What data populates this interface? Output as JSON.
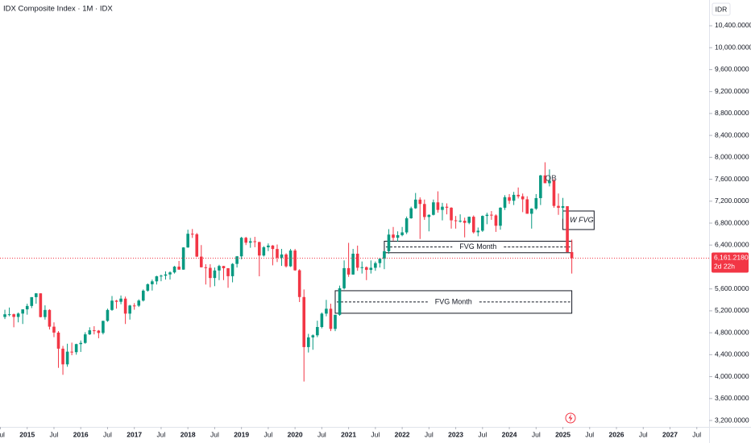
{
  "chart_data": {
    "type": "candlestick",
    "title": "IDX Composite Index · 1M · IDX",
    "currency": "IDR",
    "up_color": "#089981",
    "down_color": "#f23645",
    "x": [
      "2014-08",
      "2014-09",
      "2014-10",
      "2014-11",
      "2014-12",
      "2015-01",
      "2015-02",
      "2015-03",
      "2015-04",
      "2015-05",
      "2015-06",
      "2015-07",
      "2015-08",
      "2015-09",
      "2015-10",
      "2015-11",
      "2015-12",
      "2016-01",
      "2016-02",
      "2016-03",
      "2016-04",
      "2016-05",
      "2016-06",
      "2016-07",
      "2016-08",
      "2016-09",
      "2016-10",
      "2016-11",
      "2016-12",
      "2017-01",
      "2017-02",
      "2017-03",
      "2017-04",
      "2017-05",
      "2017-06",
      "2017-07",
      "2017-08",
      "2017-09",
      "2017-10",
      "2017-11",
      "2017-12",
      "2018-01",
      "2018-02",
      "2018-03",
      "2018-04",
      "2018-05",
      "2018-06",
      "2018-07",
      "2018-08",
      "2018-09",
      "2018-10",
      "2018-11",
      "2018-12",
      "2019-01",
      "2019-02",
      "2019-03",
      "2019-04",
      "2019-05",
      "2019-06",
      "2019-07",
      "2019-08",
      "2019-09",
      "2019-10",
      "2019-11",
      "2019-12",
      "2020-01",
      "2020-02",
      "2020-03",
      "2020-04",
      "2020-05",
      "2020-06",
      "2020-07",
      "2020-08",
      "2020-09",
      "2020-10",
      "2020-11",
      "2020-12",
      "2021-01",
      "2021-02",
      "2021-03",
      "2021-04",
      "2021-05",
      "2021-06",
      "2021-07",
      "2021-08",
      "2021-09",
      "2021-10",
      "2021-11",
      "2021-12",
      "2022-01",
      "2022-02",
      "2022-03",
      "2022-04",
      "2022-05",
      "2022-06",
      "2022-07",
      "2022-08",
      "2022-09",
      "2022-10",
      "2022-11",
      "2022-12",
      "2023-01",
      "2023-02",
      "2023-03",
      "2023-04",
      "2023-05",
      "2023-06",
      "2023-07",
      "2023-08",
      "2023-09",
      "2023-10",
      "2023-11",
      "2023-12",
      "2024-01",
      "2024-02",
      "2024-03",
      "2024-04",
      "2024-05",
      "2024-06",
      "2024-07",
      "2024-08",
      "2024-09",
      "2024-10",
      "2024-11",
      "2024-12",
      "2025-01",
      "2025-02",
      "2025-03"
    ],
    "open": [
      5088,
      5137,
      5138,
      5089,
      5150,
      5227,
      5289,
      5450,
      5519,
      5086,
      5216,
      4911,
      4803,
      4510,
      4224,
      4455,
      4446,
      4593,
      4615,
      4771,
      4845,
      4839,
      4797,
      5017,
      5216,
      5386,
      5365,
      5423,
      5149,
      5297,
      5294,
      5387,
      5568,
      5685,
      5738,
      5830,
      5841,
      5864,
      5901,
      6006,
      5952,
      6356,
      6606,
      6597,
      6189,
      5995,
      5984,
      5799,
      5936,
      6018,
      5977,
      5832,
      6056,
      6194,
      6533,
      6443,
      6469,
      6455,
      6209,
      6359,
      6391,
      6328,
      6169,
      6228,
      6012,
      6300,
      5940,
      5452,
      4539,
      4716,
      4754,
      4905,
      5149,
      5238,
      4870,
      5128,
      5612,
      5979,
      5862,
      6242,
      5986,
      5996,
      5947,
      5985,
      6070,
      6150,
      6287,
      6591,
      6533,
      6581,
      6631,
      6888,
      7071,
      7229,
      7149,
      6912,
      6951,
      7179,
      7041,
      7099,
      7081,
      6851,
      6839,
      6843,
      6805,
      6916,
      6633,
      6662,
      6931,
      6953,
      6940,
      6752,
      7081,
      7273,
      7208,
      7316,
      7289,
      7234,
      6971,
      7064,
      7256,
      7670,
      7528,
      7575,
      7114,
      7080,
      7109,
      6271
    ],
    "high": [
      5220,
      5260,
      5150,
      5170,
      5228,
      5330,
      5450,
      5524,
      5520,
      5300,
      5230,
      4990,
      4830,
      4560,
      4600,
      4620,
      4600,
      4660,
      4810,
      4900,
      4920,
      4850,
      5020,
      5240,
      5470,
      5400,
      5480,
      5460,
      5310,
      5340,
      5410,
      5590,
      5700,
      5770,
      5840,
      5860,
      5920,
      5920,
      6020,
      6110,
      6360,
      6680,
      6693,
      6620,
      6400,
      6050,
      6050,
      5990,
      6040,
      6020,
      5980,
      6070,
      6200,
      6550,
      6550,
      6530,
      6550,
      6460,
      6380,
      6430,
      6400,
      6410,
      6330,
      6250,
      6330,
      6330,
      5960,
      5590,
      4780,
      4770,
      5020,
      5170,
      5400,
      5330,
      5130,
      5660,
      6120,
      6440,
      6330,
      6390,
      6100,
      6010,
      6120,
      6100,
      6160,
      6290,
      6690,
      6730,
      6650,
      6730,
      6920,
      7100,
      7350,
      7270,
      7230,
      6960,
      7230,
      7380,
      7170,
      7160,
      7090,
      6930,
      6960,
      6900,
      6920,
      6940,
      6720,
      6940,
      6990,
      7020,
      6960,
      7090,
      7310,
      7330,
      7370,
      7450,
      7340,
      7290,
      7070,
      7330,
      7680,
      7910,
      7780,
      7610,
      7340,
      7260,
      7110,
      6500
    ],
    "low": [
      5050,
      5100,
      4900,
      4990,
      4960,
      5130,
      5250,
      5330,
      5080,
      5040,
      4860,
      4720,
      4160,
      4033,
      4180,
      4390,
      4400,
      4450,
      4600,
      4760,
      4770,
      4700,
      4770,
      5000,
      5200,
      5240,
      5320,
      4960,
      5040,
      5220,
      5270,
      5370,
      5550,
      5570,
      5680,
      5740,
      5770,
      5770,
      5880,
      5950,
      5950,
      6350,
      6530,
      6180,
      5990,
      5680,
      5630,
      5650,
      5760,
      5760,
      5620,
      5720,
      5990,
      6140,
      6400,
      6350,
      6360,
      5830,
      6190,
      6290,
      6030,
      6090,
      6020,
      5990,
      6000,
      5930,
      5360,
      3911,
      4440,
      4490,
      4720,
      4880,
      5100,
      4830,
      4830,
      5110,
      5590,
      5820,
      5860,
      5930,
      5880,
      5760,
      5880,
      5930,
      5990,
      5960,
      6240,
      6480,
      6460,
      6560,
      6600,
      6880,
      7060,
      6510,
      6860,
      6650,
      6940,
      6990,
      6850,
      6960,
      6700,
      6700,
      6810,
      6540,
      6780,
      6610,
      6560,
      6640,
      6780,
      6860,
      6640,
      6680,
      7040,
      7150,
      7130,
      7250,
      7000,
      6970,
      6700,
      7040,
      7130,
      7540,
      7470,
      7080,
      6950,
      6880,
      6270,
      5880
    ],
    "close": [
      5137,
      5138,
      5089,
      5150,
      5227,
      5289,
      5450,
      5519,
      5086,
      5216,
      4911,
      4803,
      4510,
      4224,
      4455,
      4446,
      4593,
      4615,
      4771,
      4845,
      4839,
      4797,
      5017,
      5216,
      5386,
      5365,
      5423,
      5149,
      5297,
      5294,
      5387,
      5568,
      5685,
      5738,
      5830,
      5841,
      5864,
      5901,
      6006,
      5952,
      6356,
      6606,
      6597,
      6189,
      5995,
      5984,
      5799,
      5936,
      6018,
      5977,
      5832,
      6056,
      6194,
      6533,
      6443,
      6469,
      6455,
      6209,
      6359,
      6391,
      6328,
      6169,
      6228,
      6012,
      6300,
      5940,
      5452,
      4539,
      4716,
      4754,
      4905,
      5149,
      5238,
      4870,
      5128,
      5612,
      5979,
      5862,
      6242,
      5986,
      5996,
      5947,
      5985,
      6070,
      6150,
      6287,
      6591,
      6533,
      6581,
      6631,
      6888,
      7071,
      7229,
      7149,
      6912,
      6951,
      7179,
      7041,
      7099,
      7081,
      6851,
      6839,
      6843,
      6805,
      6916,
      6633,
      6662,
      6931,
      6953,
      6940,
      6752,
      7081,
      7273,
      7208,
      7316,
      7289,
      7234,
      6971,
      7064,
      7256,
      7670,
      7528,
      7575,
      7114,
      7080,
      7109,
      6271,
      6161.218
    ],
    "ylim": [
      3083,
      10870
    ],
    "yticks": [
      {
        "value": 3200,
        "label": "3,200.0000"
      },
      {
        "value": 3600,
        "label": "3,600.0000"
      },
      {
        "value": 4000,
        "label": "4,000.0000"
      },
      {
        "value": 4400,
        "label": "4,400.0000"
      },
      {
        "value": 4800,
        "label": "4,800.0000"
      },
      {
        "value": 5200,
        "label": "5,200.0000"
      },
      {
        "value": 5600,
        "label": "5,600.0000"
      },
      {
        "value": 6400,
        "label": "6,400.0000"
      },
      {
        "value": 6800,
        "label": "6,800.0000"
      },
      {
        "value": 7200,
        "label": "7,200.0000"
      },
      {
        "value": 7600,
        "label": "7,600.0000"
      },
      {
        "value": 8000,
        "label": "8,000.0000"
      },
      {
        "value": 8400,
        "label": "8,400.0000"
      },
      {
        "value": 8800,
        "label": "8,800.0000"
      },
      {
        "value": 9200,
        "label": "9,200.0000"
      },
      {
        "value": 9600,
        "label": "9,600.0000"
      },
      {
        "value": 10000,
        "label": "10,000.0000"
      },
      {
        "value": 10400,
        "label": "10,400.0000"
      }
    ],
    "xticks": [
      {
        "value": "2014-07",
        "label": "Jul"
      },
      {
        "value": "2015-01",
        "label": "2015"
      },
      {
        "value": "2015-07",
        "label": "Jul"
      },
      {
        "value": "2016-01",
        "label": "2016"
      },
      {
        "value": "2016-07",
        "label": "Jul"
      },
      {
        "value": "2017-01",
        "label": "2017"
      },
      {
        "value": "2017-07",
        "label": "Jul"
      },
      {
        "value": "2018-01",
        "label": "2018"
      },
      {
        "value": "2018-07",
        "label": "Jul"
      },
      {
        "value": "2019-01",
        "label": "2019"
      },
      {
        "value": "2019-07",
        "label": "Jul"
      },
      {
        "value": "2020-01",
        "label": "2020"
      },
      {
        "value": "2020-07",
        "label": "Jul"
      },
      {
        "value": "2021-01",
        "label": "2021"
      },
      {
        "value": "2021-07",
        "label": "Jul"
      },
      {
        "value": "2022-01",
        "label": "2022"
      },
      {
        "value": "2022-07",
        "label": "Jul"
      },
      {
        "value": "2023-01",
        "label": "2023"
      },
      {
        "value": "2023-07",
        "label": "Jul"
      },
      {
        "value": "2024-01",
        "label": "2024"
      },
      {
        "value": "2024-07",
        "label": "Jul"
      },
      {
        "value": "2025-01",
        "label": "2025"
      },
      {
        "value": "2025-07",
        "label": "Jul"
      },
      {
        "value": "2026-01",
        "label": "2026"
      },
      {
        "value": "2026-07",
        "label": "Jul"
      },
      {
        "value": "2027-01",
        "label": "2027"
      },
      {
        "value": "2027-07",
        "label": "Jul"
      }
    ],
    "last_price": {
      "value": 6161.218,
      "label": "6,161.2180"
    },
    "countdown": "2d 22h",
    "zones": [
      {
        "label": "FVG Month",
        "start": "2021-09",
        "end": "2025-03",
        "top": 6470,
        "bottom": 6260
      },
      {
        "label": "FVG Month",
        "start": "2020-10",
        "end": "2025-03",
        "top": 5567,
        "bottom": 5156
      },
      {
        "label": "W FVG",
        "start": "2025-01",
        "end": "2025-08",
        "top": 7021,
        "bottom": 6683
      }
    ],
    "notes": [
      {
        "label": "OB",
        "x": "2024-09",
        "y": 7610
      }
    ]
  }
}
